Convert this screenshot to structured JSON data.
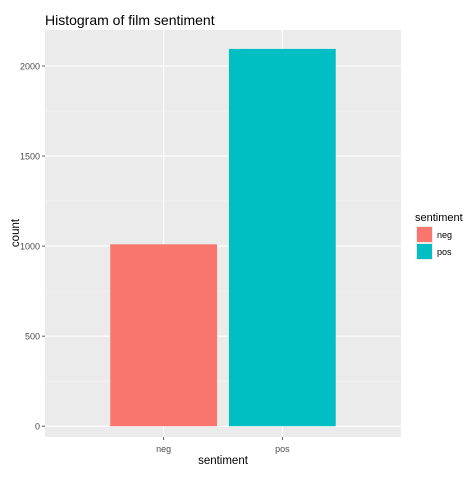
{
  "chart_data": {
    "type": "bar",
    "title": "Histogram of film sentiment",
    "xlabel": "sentiment",
    "ylabel": "count",
    "categories": [
      "neg",
      "pos"
    ],
    "values": [
      1010,
      2095
    ],
    "ylim": [
      -60,
      2200
    ],
    "yticks": [
      0,
      500,
      1000,
      1500,
      2000
    ],
    "grid": true,
    "legend": {
      "title": "sentiment",
      "placement": "right",
      "entries": [
        "neg",
        "pos"
      ]
    },
    "colors": {
      "neg": "#F8766D",
      "pos": "#00BFC4",
      "panel": "#EBEBEB",
      "grid_major": "#FFFFFF",
      "grid_minor": "#F5F5F5"
    }
  }
}
